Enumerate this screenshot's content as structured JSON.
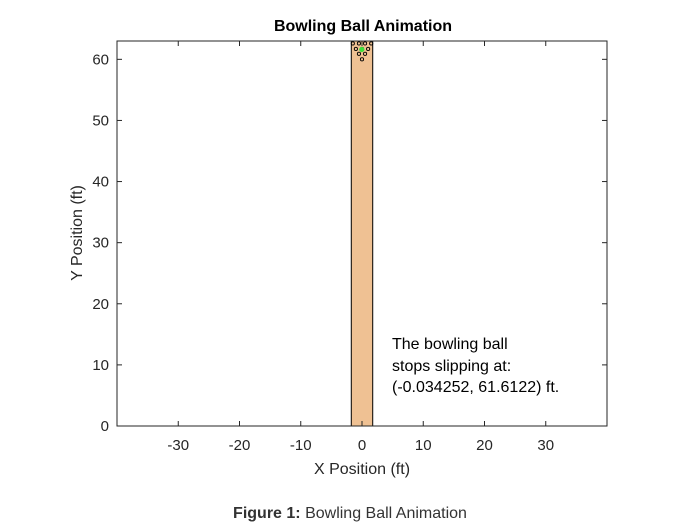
{
  "chart_data": {
    "type": "scatter",
    "title": "Bowling Ball Animation",
    "xlabel": "X Position (ft)",
    "ylabel": "Y Position (ft)",
    "xlim": [
      -40,
      40
    ],
    "ylim": [
      0,
      63
    ],
    "xticks": [
      -30,
      -20,
      -10,
      0,
      10,
      20,
      30
    ],
    "yticks": [
      0,
      10,
      20,
      30,
      40,
      50,
      60
    ],
    "grid": false,
    "lane": {
      "x_range": [
        -1.75,
        1.75
      ],
      "y_range": [
        0,
        63
      ],
      "color": "#EFC193"
    },
    "pins": {
      "x": [
        0,
        -0.5,
        0.5,
        -1,
        0,
        1,
        -1.5,
        -0.5,
        0.5,
        1.5
      ],
      "y": [
        60.0,
        60.9,
        60.9,
        61.7,
        61.7,
        61.7,
        62.6,
        62.6,
        62.6,
        62.6
      ]
    },
    "ball": {
      "x": -0.034252,
      "y": 61.6122,
      "color": "#3CE03C"
    },
    "annotation": {
      "lines": [
        "The bowling ball",
        "stops slipping at:",
        "(-0.034252, 61.6122) ft."
      ],
      "x": 5,
      "y": 10
    }
  },
  "caption": {
    "prefix": "Figure 1:",
    "text": "Bowling Ball Animation"
  }
}
